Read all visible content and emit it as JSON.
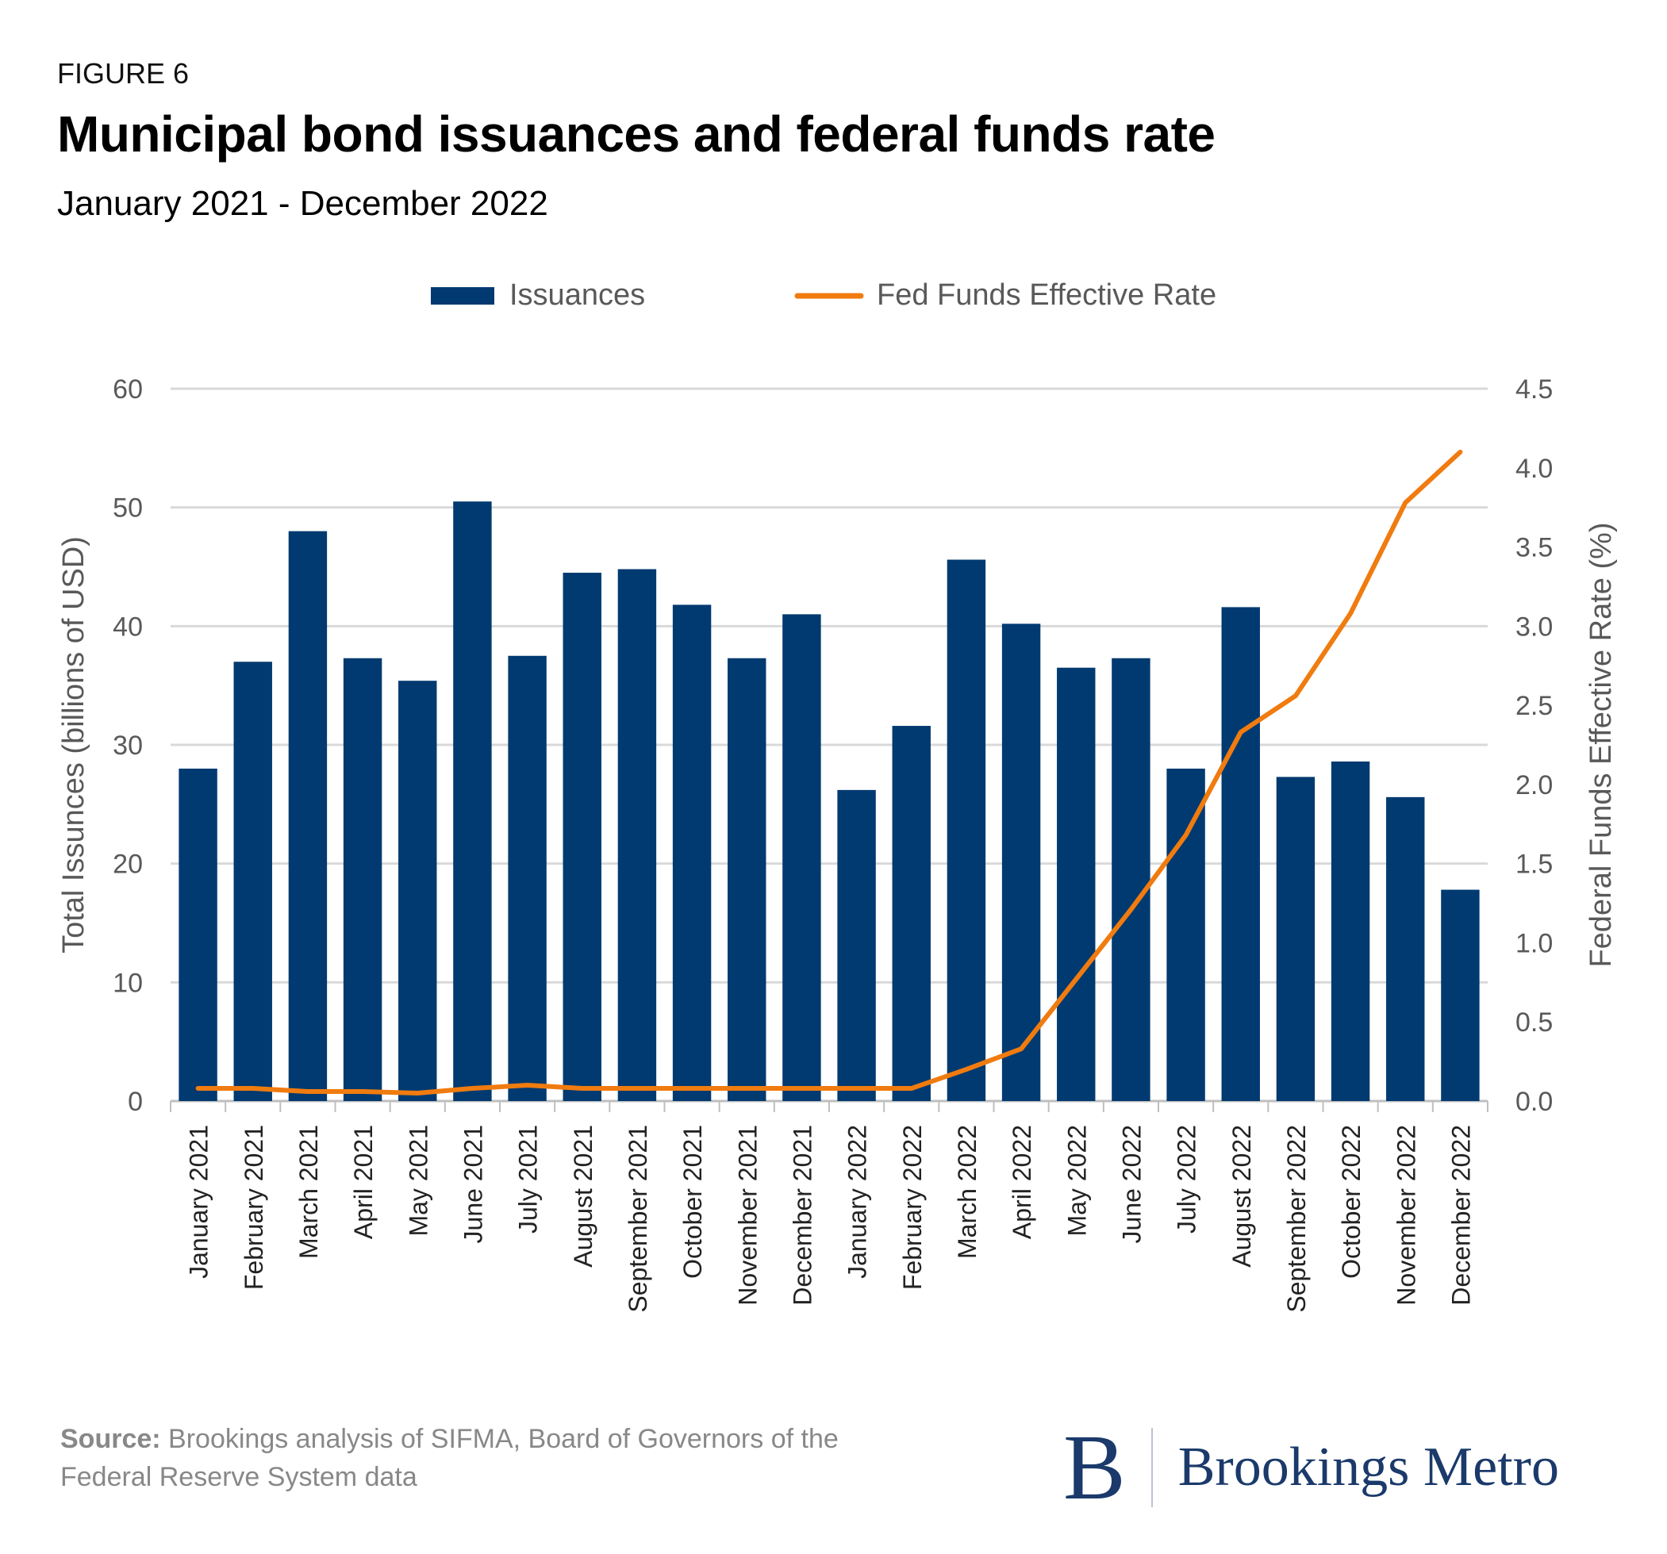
{
  "header": {
    "figure_label": "FIGURE 6",
    "title": "Municipal bond issuances and federal funds rate",
    "subtitle": "January 2021 - December 2022"
  },
  "colors": {
    "bars": "#003a70",
    "line": "#f07b0f",
    "grid": "#d9d9d9",
    "axis_text": "#595959"
  },
  "chart_data": {
    "type": "bar",
    "categories": [
      "January 2021",
      "February 2021",
      "March 2021",
      "April 2021",
      "May 2021",
      "June 2021",
      "July 2021",
      "August 2021",
      "September 2021",
      "October 2021",
      "November 2021",
      "December 2021",
      "January 2022",
      "February 2022",
      "March 2022",
      "April 2022",
      "May 2022",
      "June 2022",
      "July 2022",
      "August 2022",
      "September 2022",
      "October 2022",
      "November 2022",
      "December 2022"
    ],
    "series": [
      {
        "name": "Issuances",
        "type": "bar",
        "axis": "left",
        "values": [
          28.0,
          37.0,
          48.0,
          37.3,
          35.4,
          50.5,
          37.5,
          44.5,
          44.8,
          41.8,
          37.3,
          41.0,
          26.2,
          31.6,
          45.6,
          40.2,
          36.5,
          37.3,
          28.0,
          41.6,
          27.3,
          28.6,
          25.6,
          17.8
        ]
      },
      {
        "name": "Fed Funds Effective Rate",
        "type": "line",
        "axis": "right",
        "values": [
          0.08,
          0.08,
          0.06,
          0.06,
          0.05,
          0.08,
          0.1,
          0.08,
          0.08,
          0.08,
          0.08,
          0.08,
          0.08,
          0.08,
          0.2,
          0.33,
          0.77,
          1.21,
          1.68,
          2.33,
          2.56,
          3.08,
          3.78,
          4.1
        ]
      }
    ],
    "ylabel": "Total Issunces (billions of USD)",
    "y2label": "Federal Funds Effective Rate (%)",
    "ylim": [
      0,
      60
    ],
    "y2lim": [
      0,
      4.5
    ],
    "yticks": [
      "0",
      "10",
      "20",
      "30",
      "40",
      "50",
      "60"
    ],
    "y2ticks": [
      "0.0",
      "0.5",
      "1.0",
      "1.5",
      "2.0",
      "2.5",
      "3.0",
      "3.5",
      "4.0",
      "4.5"
    ],
    "grid": true,
    "legend_position": "top-center"
  },
  "footer": {
    "source_label": "Source:",
    "source_text": " Brookings analysis of SIFMA, Board of Governors of the Federal Reserve System data",
    "logo_letter": "B",
    "logo_name": "Brookings Metro"
  }
}
